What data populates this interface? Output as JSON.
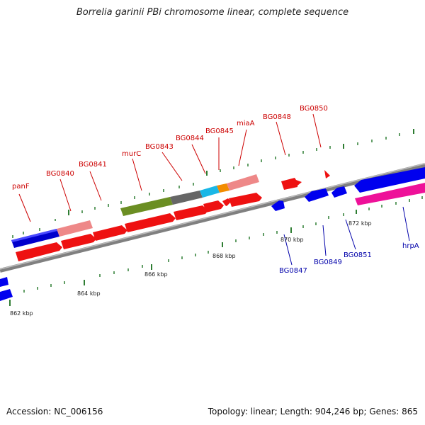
{
  "title": "Borrelia garinii PBi chromosome linear, complete sequence",
  "footer": {
    "accession": "Accession: NC_006156",
    "summary": "Topology: linear; Length: 904,246 bp; Genes: 865"
  },
  "colors": {
    "forward_label": "#cc0000",
    "reverse_label": "#0000aa",
    "tick": "#2e7d32",
    "backbone": "#808080"
  },
  "scale_labels": [
    "862 kbp",
    "864 kbp",
    "866 kbp",
    "868 kbp",
    "870 kbp",
    "872 kbp"
  ],
  "forward_labels": [
    "panF",
    "BG0840",
    "BG0841",
    "murC",
    "BG0843",
    "BG0844",
    "BG0845",
    "miaA",
    "BG0848",
    "BG0850"
  ],
  "reverse_labels": [
    "BG0847",
    "BG0849",
    "BG0851",
    "hrpA"
  ]
}
